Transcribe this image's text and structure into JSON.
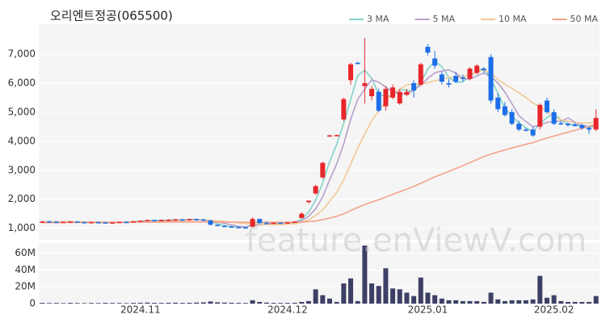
{
  "chart_data": {
    "type": "candlestick",
    "title": "오리엔트정공(065500)",
    "watermark": "feature.enViewV.com",
    "categories": [
      null,
      null,
      null,
      null,
      null,
      null,
      null,
      null,
      null,
      null,
      null,
      null,
      null,
      null,
      "2024.11",
      null,
      null,
      null,
      null,
      null,
      null,
      null,
      null,
      null,
      null,
      null,
      null,
      null,
      null,
      null,
      null,
      null,
      null,
      null,
      null,
      "2024.12",
      null,
      null,
      null,
      null,
      null,
      null,
      null,
      null,
      null,
      null,
      null,
      null,
      null,
      null,
      null,
      null,
      null,
      null,
      null,
      "2025.01",
      null,
      null,
      null,
      null,
      null,
      null,
      null,
      null,
      null,
      null,
      null,
      null,
      null,
      null,
      null,
      null,
      null,
      "2025.02",
      null,
      null,
      null,
      null,
      null,
      null
    ],
    "candles": [
      [
        1200,
        1250,
        1180,
        1230
      ],
      [
        1230,
        1260,
        1200,
        1220
      ],
      [
        1220,
        1240,
        1190,
        1210
      ],
      [
        1210,
        1230,
        1190,
        1220
      ],
      [
        1220,
        1250,
        1200,
        1230
      ],
      [
        1230,
        1240,
        1200,
        1210
      ],
      [
        1210,
        1230,
        1190,
        1200
      ],
      [
        1200,
        1220,
        1180,
        1210
      ],
      [
        1210,
        1230,
        1190,
        1200
      ],
      [
        1200,
        1220,
        1160,
        1180
      ],
      [
        1180,
        1210,
        1170,
        1200
      ],
      [
        1200,
        1230,
        1190,
        1220
      ],
      [
        1220,
        1240,
        1200,
        1210
      ],
      [
        1210,
        1250,
        1200,
        1240
      ],
      [
        1240,
        1270,
        1230,
        1260
      ],
      [
        1260,
        1300,
        1240,
        1280
      ],
      [
        1280,
        1300,
        1250,
        1270
      ],
      [
        1270,
        1300,
        1250,
        1280
      ],
      [
        1280,
        1310,
        1260,
        1290
      ],
      [
        1290,
        1320,
        1270,
        1300
      ],
      [
        1300,
        1320,
        1280,
        1290
      ],
      [
        1290,
        1330,
        1280,
        1310
      ],
      [
        1310,
        1340,
        1280,
        1300
      ],
      [
        1300,
        1320,
        1250,
        1270
      ],
      [
        1270,
        1280,
        1100,
        1120
      ],
      [
        1120,
        1140,
        1060,
        1080
      ],
      [
        1080,
        1100,
        1040,
        1060
      ],
      [
        1060,
        1080,
        1020,
        1040
      ],
      [
        1040,
        1060,
        1000,
        1030
      ],
      [
        1030,
        1050,
        1000,
        1020
      ],
      [
        1050,
        1380,
        1020,
        1320
      ],
      [
        1320,
        1330,
        1150,
        1180
      ],
      [
        1180,
        1220,
        1140,
        1160
      ],
      [
        1160,
        1200,
        1150,
        1190
      ],
      [
        1190,
        1200,
        1160,
        1180
      ],
      [
        1180,
        1220,
        1170,
        1200
      ],
      [
        1200,
        1250,
        1190,
        1230
      ],
      [
        1350,
        1550,
        1350,
        1500
      ],
      [
        1900,
        1950,
        1850,
        1950
      ],
      [
        2200,
        2500,
        2150,
        2450
      ],
      [
        2750,
        3300,
        2700,
        3250
      ],
      [
        4180,
        4220,
        4150,
        4200
      ],
      [
        4200,
        4230,
        4180,
        4210
      ],
      [
        4750,
        5500,
        4700,
        5450
      ],
      [
        6100,
        6700,
        5950,
        6650
      ],
      [
        6700,
        6750,
        6650,
        6680
      ],
      [
        5900,
        7550,
        5300,
        6000
      ],
      [
        5550,
        5900,
        5400,
        5800
      ],
      [
        5700,
        5800,
        5000,
        5050
      ],
      [
        5200,
        5900,
        5050,
        5800
      ],
      [
        5500,
        5950,
        5450,
        5850
      ],
      [
        5300,
        5800,
        5250,
        5700
      ],
      [
        5600,
        5800,
        5550,
        5700
      ],
      [
        6000,
        6100,
        5500,
        5750
      ],
      [
        5950,
        6700,
        5900,
        6650
      ],
      [
        7250,
        7350,
        6950,
        7050
      ],
      [
        6850,
        7100,
        6500,
        6600
      ],
      [
        6300,
        6400,
        5950,
        6050
      ],
      [
        6000,
        6150,
        5850,
        5950
      ],
      [
        6250,
        6400,
        6000,
        6050
      ],
      [
        6200,
        6300,
        6050,
        6150
      ],
      [
        6150,
        6550,
        6100,
        6500
      ],
      [
        6350,
        6650,
        6300,
        6600
      ],
      [
        6500,
        6550,
        6350,
        6450
      ],
      [
        6900,
        7000,
        5300,
        5400
      ],
      [
        5500,
        5650,
        5000,
        5100
      ],
      [
        5200,
        5350,
        4850,
        4900
      ],
      [
        5000,
        5100,
        4550,
        4600
      ],
      [
        4600,
        4700,
        4350,
        4400
      ],
      [
        4400,
        4450,
        4330,
        4380
      ],
      [
        4400,
        4500,
        4150,
        4200
      ],
      [
        4500,
        5300,
        4400,
        5250
      ],
      [
        5400,
        5500,
        4950,
        5000
      ],
      [
        5000,
        5100,
        4550,
        4600
      ],
      [
        4620,
        4700,
        4550,
        4600
      ],
      [
        4600,
        4650,
        4500,
        4550
      ],
      [
        4580,
        4650,
        4500,
        4520
      ],
      [
        4550,
        4600,
        4400,
        4450
      ],
      [
        4450,
        4500,
        4250,
        4400
      ],
      [
        4400,
        5100,
        4350,
        4800
      ]
    ],
    "up_color": "#e8262a",
    "down_color": "#1d6ee8",
    "ylim": [
      600,
      8030
    ],
    "yticks": [
      {
        "value": 1000,
        "label": "1,000"
      },
      {
        "value": 2000,
        "label": "2,000"
      },
      {
        "value": 3000,
        "label": "3,000"
      },
      {
        "value": 4000,
        "label": "4,000"
      },
      {
        "value": 5000,
        "label": "5,000"
      },
      {
        "value": 6000,
        "label": "6,000"
      },
      {
        "value": 7000,
        "label": "7,000"
      }
    ],
    "grid": true,
    "legend": "top-right",
    "series": [
      {
        "name": "3 MA",
        "color": "#82d3ca",
        "values": [
          1220,
          1220,
          1220,
          1217,
          1220,
          1220,
          1213,
          1207,
          1203,
          1197,
          1193,
          1200,
          1210,
          1223,
          1237,
          1260,
          1270,
          1277,
          1280,
          1290,
          1293,
          1300,
          1300,
          1293,
          1230,
          1157,
          1087,
          1060,
          1043,
          1030,
          1123,
          1173,
          1220,
          1177,
          1177,
          1190,
          1203,
          1310,
          1560,
          1967,
          2550,
          3300,
          3887,
          4620,
          5437,
          6260,
          6443,
          6160,
          5617,
          5550,
          5567,
          5783,
          5750,
          5717,
          6033,
          6483,
          6767,
          6567,
          6200,
          6017,
          6050,
          6233,
          6417,
          6517,
          6150,
          5650,
          5133,
          4867,
          4633,
          4460,
          4327,
          4610,
          4817,
          4950,
          4733,
          4583,
          4557,
          4507,
          4457,
          4550
        ]
      },
      {
        "name": "5 MA",
        "color": "#b7a0c9",
        "values": [
          1220,
          1220,
          1222,
          1220,
          1222,
          1218,
          1214,
          1214,
          1210,
          1200,
          1198,
          1202,
          1202,
          1210,
          1226,
          1242,
          1252,
          1266,
          1276,
          1284,
          1286,
          1294,
          1298,
          1294,
          1258,
          1216,
          1166,
          1114,
          1066,
          1046,
          1094,
          1118,
          1142,
          1174,
          1206,
          1182,
          1192,
          1260,
          1412,
          1666,
          2076,
          2670,
          3212,
          3912,
          4752,
          5438,
          5798,
          6116,
          6036,
          5866,
          5700,
          5640,
          5620,
          5770,
          5930,
          6170,
          6350,
          6420,
          6460,
          6340,
          6160,
          6140,
          6250,
          6350,
          6220,
          6010,
          5690,
          5290,
          4880,
          4676,
          4496,
          4566,
          4646,
          4686,
          4690,
          4800,
          4654,
          4544,
          4504,
          4544
        ]
      },
      {
        "name": "10 MA",
        "color": "#f2c894",
        "values": [
          1215,
          1216,
          1217,
          1218,
          1218,
          1217,
          1216,
          1215,
          1213,
          1211,
          1208,
          1208,
          1208,
          1210,
          1214,
          1221,
          1228,
          1235,
          1244,
          1256,
          1265,
          1274,
          1283,
          1286,
          1272,
          1251,
          1230,
          1207,
          1181,
          1153,
          1156,
          1144,
          1130,
          1120,
          1126,
          1138,
          1155,
          1201,
          1293,
          1436,
          1629,
          1931,
          2236,
          2663,
          3210,
          3758,
          4243,
          4708,
          5048,
          5383,
          5643,
          5791,
          5940,
          5970,
          5970,
          6007,
          6082,
          6117,
          6207,
          6187,
          6217,
          6297,
          6387,
          6457,
          6327,
          6132,
          5962,
          5817,
          5662,
          5505,
          5310,
          5185,
          5025,
          4840,
          4735,
          4680,
          4642,
          4627,
          4627,
          4682
        ]
      },
      {
        "name": "50 MA",
        "color": "#f4a28c",
        "values": [
          1190,
          1192,
          1194,
          1195,
          1197,
          1198,
          1200,
          1201,
          1202,
          1203,
          1204,
          1205,
          1206,
          1207,
          1208,
          1209,
          1210,
          1211,
          1212,
          1213,
          1214,
          1215,
          1216,
          1217,
          1215,
          1213,
          1211,
          1209,
          1207,
          1205,
          1206,
          1205,
          1204,
          1204,
          1204,
          1205,
          1206,
          1212,
          1227,
          1252,
          1293,
          1352,
          1412,
          1497,
          1606,
          1716,
          1812,
          1904,
          1981,
          2074,
          2168,
          2258,
          2348,
          2439,
          2548,
          2663,
          2769,
          2866,
          2960,
          3057,
          3155,
          3261,
          3367,
          3470,
          3552,
          3628,
          3700,
          3766,
          3828,
          3892,
          3951,
          4033,
          4107,
          4175,
          4245,
          4312,
          4374,
          4439,
          4512,
          4584
        ]
      }
    ],
    "volume": {
      "color": "#3d4066",
      "ylim": [
        0,
        72000000
      ],
      "yticks": [
        0,
        {
          "value": 20000000,
          "label": "20M"
        },
        {
          "value": 40000000,
          "label": "40M"
        },
        {
          "value": 60000000,
          "label": "60M"
        }
      ],
      "values": [
        900000,
        700000,
        800000,
        600000,
        900000,
        700000,
        600000,
        800000,
        700000,
        900000,
        800000,
        700000,
        600000,
        900000,
        1000000,
        1200000,
        900000,
        800000,
        1000000,
        1100000,
        900000,
        1000000,
        1200000,
        1500000,
        2500000,
        1500000,
        1200000,
        1000000,
        900000,
        800000,
        4000000,
        2000000,
        1200000,
        900000,
        800000,
        900000,
        1000000,
        2000000,
        3000000,
        17000000,
        10000000,
        6000000,
        2000000,
        24000000,
        30000000,
        3000000,
        69000000,
        24000000,
        21000000,
        42000000,
        18000000,
        17000000,
        13000000,
        9000000,
        31000000,
        13000000,
        10000000,
        6000000,
        4000000,
        4000000,
        3000000,
        3000000,
        3000000,
        2000000,
        13000000,
        5000000,
        3000000,
        4000000,
        4000000,
        4000000,
        5000000,
        33000000,
        7000000,
        10000000,
        3000000,
        2000000,
        2000000,
        2000000,
        2000000,
        9000000
      ]
    }
  }
}
